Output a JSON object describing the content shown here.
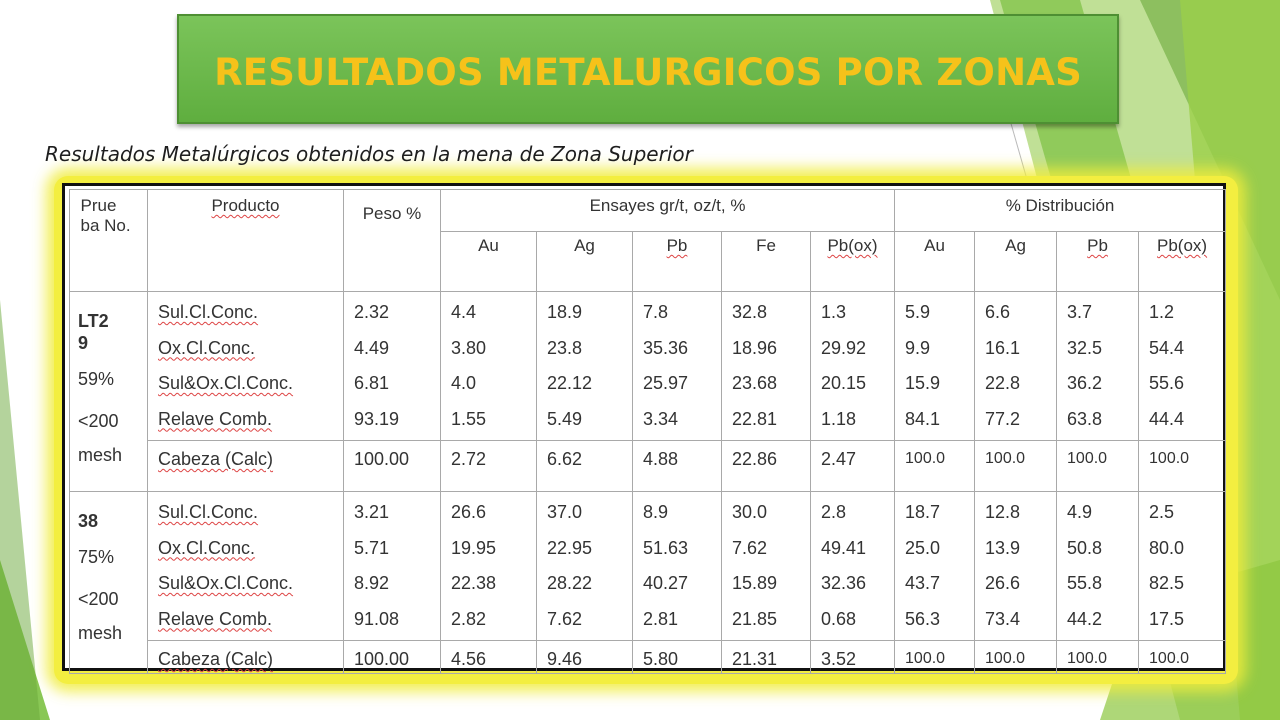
{
  "slide": {
    "title": "RESULTADOS METALURGICOS POR ZONAS",
    "subtitle": "Resultados Metalúrgicos obtenidos en la  mena de Zona Superior"
  },
  "colors": {
    "title_text": "#f6c21a",
    "banner_green": "#6db84c",
    "glow_yellow": "#f3ee40",
    "accent_green": "#7cc142"
  },
  "table": {
    "header": {
      "prueba": "Prue ba No.",
      "producto": "Producto",
      "peso": "Peso %",
      "ensayes": "Ensayes gr/t, oz/t, %",
      "distribucion": "% Distribución",
      "ensayes_cols": [
        "Au",
        "Ag",
        "Pb",
        "Fe",
        "Pb(ox)"
      ],
      "dist_cols": [
        "Au",
        "Ag",
        "Pb",
        "Pb(ox)"
      ]
    },
    "groups": [
      {
        "test_id": "LT29",
        "pct": "59%",
        "mesh": "<200 mesh",
        "products": [
          "Sul.Cl.Conc.",
          "Ox.Cl.Conc.",
          "Sul&Ox.Cl.Conc.",
          "Relave Comb."
        ],
        "peso": [
          "2.32",
          "4.49",
          "6.81",
          "93.19"
        ],
        "au": [
          "4.4",
          "3.80",
          "4.0",
          "1.55"
        ],
        "ag": [
          "18.9",
          "23.8",
          "22.12",
          "5.49"
        ],
        "pb": [
          "7.8",
          "35.36",
          "25.97",
          "3.34"
        ],
        "fe": [
          "32.8",
          "18.96",
          "23.68",
          "22.81"
        ],
        "pbox": [
          "1.3",
          "29.92",
          "20.15",
          "1.18"
        ],
        "d_au": [
          "5.9",
          "9.9",
          "15.9",
          "84.1"
        ],
        "d_ag": [
          "6.6",
          "16.1",
          "22.8",
          "77.2"
        ],
        "d_pb": [
          "3.7",
          "32.5",
          "36.2",
          "63.8"
        ],
        "d_pbox": [
          "1.2",
          "54.4",
          "55.6",
          "44.4"
        ],
        "cabeza": {
          "label": "Cabeza (Calc)",
          "peso": "100.00",
          "au": "2.72",
          "ag": "6.62",
          "pb": "4.88",
          "fe": "22.86",
          "pbox": "2.47",
          "d_au": "100.0",
          "d_ag": "100.0",
          "d_pb": "100.0",
          "d_pbox": "100.0"
        }
      },
      {
        "test_id": "38",
        "pct": "75%",
        "mesh": "<200 mesh",
        "products": [
          "Sul.Cl.Conc.",
          "Ox.Cl.Conc.",
          "Sul&Ox.Cl.Conc.",
          "Relave Comb."
        ],
        "peso": [
          "3.21",
          "5.71",
          "8.92",
          "91.08"
        ],
        "au": [
          "26.6",
          "19.95",
          "22.38",
          "2.82"
        ],
        "ag": [
          "37.0",
          "22.95",
          "28.22",
          "7.62"
        ],
        "pb": [
          "8.9",
          "51.63",
          "40.27",
          "2.81"
        ],
        "fe": [
          "30.0",
          "7.62",
          "15.89",
          "21.85"
        ],
        "pbox": [
          "2.8",
          "49.41",
          "32.36",
          "0.68"
        ],
        "d_au": [
          "18.7",
          "25.0",
          "43.7",
          "56.3"
        ],
        "d_ag": [
          "12.8",
          "13.9",
          "26.6",
          "73.4"
        ],
        "d_pb": [
          "4.9",
          "50.8",
          "55.8",
          "44.2"
        ],
        "d_pbox": [
          "2.5",
          "80.0",
          "82.5",
          "17.5"
        ],
        "cabeza": {
          "label": "Cabeza (Calc)",
          "peso": "100.00",
          "au": "4.56",
          "ag": "9.46",
          "pb": "5.80",
          "fe": "21.31",
          "pbox": "3.52",
          "d_au": "100.0",
          "d_ag": "100.0",
          "d_pb": "100.0",
          "d_pbox": "100.0"
        }
      }
    ]
  }
}
